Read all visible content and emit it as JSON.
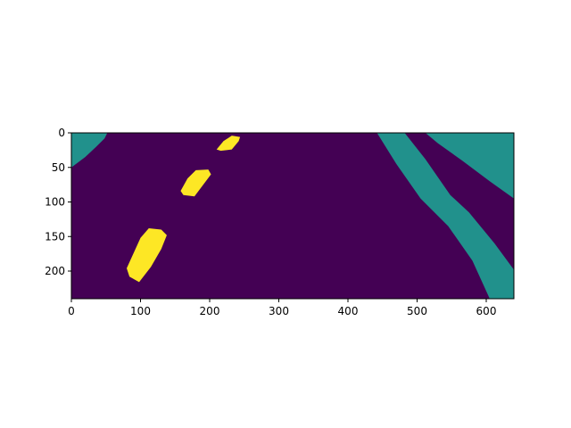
{
  "chart_data": {
    "type": "heatmap",
    "title": "",
    "xlabel": "",
    "ylabel": "",
    "image_width": 640,
    "image_height": 240,
    "xlim": [
      0,
      640
    ],
    "ylim": [
      240,
      0
    ],
    "x_ticks": [
      0,
      100,
      200,
      300,
      400,
      500,
      600
    ],
    "y_ticks": [
      0,
      50,
      100,
      150,
      200
    ],
    "x_tick_labels": [
      "0",
      "100",
      "200",
      "300",
      "400",
      "500",
      "600"
    ],
    "y_tick_labels": [
      "0",
      "50",
      "100",
      "150",
      "200"
    ],
    "grid": false,
    "legend": "none",
    "colormap": "viridis",
    "classes": [
      {
        "value": 0,
        "color": "#440154"
      },
      {
        "value": 1,
        "color": "#21918c"
      },
      {
        "value": 2,
        "color": "#fde725"
      }
    ],
    "regions": [
      {
        "class": 1,
        "points": [
          [
            0,
            0
          ],
          [
            52,
            0
          ],
          [
            48,
            8
          ],
          [
            36,
            20
          ],
          [
            20,
            35
          ],
          [
            8,
            44
          ],
          [
            0,
            50
          ]
        ]
      },
      {
        "class": 1,
        "points": [
          [
            442,
            0
          ],
          [
            482,
            0
          ],
          [
            512,
            38
          ],
          [
            548,
            90
          ],
          [
            575,
            115
          ],
          [
            612,
            160
          ],
          [
            640,
            198
          ],
          [
            640,
            240
          ],
          [
            605,
            240
          ],
          [
            580,
            185
          ],
          [
            545,
            135
          ],
          [
            505,
            95
          ],
          [
            470,
            45
          ]
        ]
      },
      {
        "class": 1,
        "points": [
          [
            512,
            0
          ],
          [
            640,
            0
          ],
          [
            640,
            95
          ],
          [
            605,
            70
          ],
          [
            565,
            40
          ],
          [
            530,
            15
          ]
        ]
      },
      {
        "class": 2,
        "points": [
          [
            80,
            196
          ],
          [
            100,
            152
          ],
          [
            112,
            138
          ],
          [
            130,
            140
          ],
          [
            138,
            148
          ],
          [
            130,
            168
          ],
          [
            115,
            194
          ],
          [
            98,
            216
          ],
          [
            84,
            208
          ]
        ]
      },
      {
        "class": 2,
        "points": [
          [
            158,
            84
          ],
          [
            168,
            66
          ],
          [
            180,
            54
          ],
          [
            198,
            53
          ],
          [
            202,
            60
          ],
          [
            190,
            76
          ],
          [
            178,
            92
          ],
          [
            162,
            90
          ]
        ]
      },
      {
        "class": 2,
        "points": [
          [
            210,
            24
          ],
          [
            220,
            12
          ],
          [
            232,
            4
          ],
          [
            244,
            6
          ],
          [
            242,
            12
          ],
          [
            232,
            24
          ],
          [
            216,
            26
          ]
        ]
      }
    ]
  }
}
